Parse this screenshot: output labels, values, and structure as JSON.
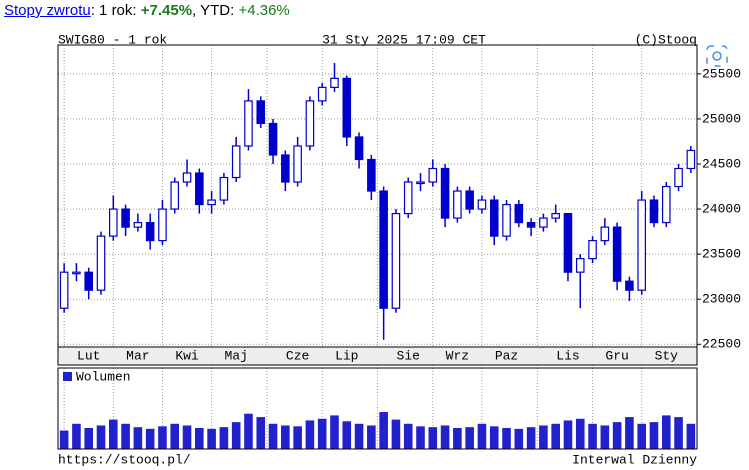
{
  "returns": {
    "link": "Stopy zwrotu",
    "period_label": ": 1 rok: ",
    "period_return": "+7.45%",
    "ytd_label": ", YTD: ",
    "ytd_return": "+4.36%"
  },
  "chart_data": {
    "type": "candlestick",
    "title": "SWIG80 - 1 rok",
    "date": "31 Sty 2025 17:09 CET",
    "credit": "(C)Stooq",
    "source_url": "https://stooq.pl/",
    "interval": "Interwal Dzienny",
    "categories": [
      null,
      null,
      "Lut",
      null,
      null,
      null,
      "Mar",
      null,
      null,
      null,
      "Kwi",
      null,
      null,
      null,
      "Maj",
      null,
      null,
      null,
      null,
      "Cze",
      null,
      null,
      null,
      "Lip",
      null,
      null,
      null,
      null,
      "Sie",
      null,
      null,
      null,
      "Wrz",
      null,
      null,
      null,
      "Paz",
      null,
      null,
      null,
      null,
      "Lis",
      null,
      null,
      null,
      "Gru",
      null,
      null,
      null,
      "Sty",
      null,
      null
    ],
    "open": [
      22900,
      23300,
      23300,
      23100,
      23700,
      24000,
      23800,
      23850,
      23650,
      24000,
      24300,
      24400,
      24050,
      24100,
      24350,
      24700,
      25200,
      24950,
      24600,
      24300,
      24700,
      25200,
      25350,
      25450,
      24800,
      24550,
      24200,
      22900,
      23950,
      24300,
      24300,
      24450,
      23900,
      24200,
      24000,
      24100,
      23700,
      24050,
      23850,
      23800,
      23900,
      23950,
      23300,
      23450,
      23650,
      23800,
      23200,
      23100,
      24100,
      23850,
      24250,
      24450
    ],
    "high": [
      23400,
      23400,
      23350,
      23750,
      24150,
      24050,
      23950,
      23950,
      24100,
      24350,
      24550,
      24450,
      24200,
      24400,
      24800,
      25330,
      25250,
      25000,
      24650,
      24800,
      25250,
      25400,
      25620,
      25480,
      24850,
      24600,
      24250,
      24000,
      24350,
      24400,
      24550,
      24500,
      24250,
      24250,
      24150,
      24150,
      24100,
      24100,
      23900,
      23950,
      24050,
      23950,
      23500,
      23700,
      23900,
      23850,
      23250,
      24200,
      24150,
      24300,
      24500,
      24700
    ],
    "low": [
      22850,
      23200,
      23000,
      23050,
      23650,
      23700,
      23750,
      23550,
      23600,
      23950,
      24250,
      23950,
      23950,
      24050,
      24300,
      24650,
      24900,
      24500,
      24200,
      24250,
      24650,
      25150,
      25300,
      24700,
      24450,
      24100,
      22550,
      22850,
      23900,
      24200,
      24250,
      23800,
      23850,
      23950,
      23950,
      23600,
      23650,
      23800,
      23700,
      23750,
      23850,
      23200,
      22900,
      23400,
      23600,
      23100,
      22980,
      23050,
      23800,
      23800,
      24200,
      24400
    ],
    "close": [
      23300,
      23300,
      23100,
      23700,
      24000,
      23800,
      23850,
      23650,
      24000,
      24300,
      24400,
      24050,
      24100,
      24350,
      24700,
      25200,
      24950,
      24600,
      24300,
      24700,
      25200,
      25350,
      25450,
      24800,
      24550,
      24200,
      22900,
      23950,
      24300,
      24300,
      24450,
      23900,
      24200,
      24000,
      24100,
      23700,
      24050,
      23850,
      23800,
      23900,
      23950,
      23300,
      23450,
      23650,
      23800,
      23200,
      23100,
      24100,
      23850,
      24250,
      24450,
      24650
    ],
    "color": "#0000cc",
    "ylim": [
      22470,
      25820
    ],
    "yticks": [
      22500,
      23000,
      23500,
      24000,
      24500,
      25000,
      25500
    ],
    "grid": true,
    "volume": {
      "name": "Wolumen",
      "color": "#2222cc",
      "ylim": [
        0,
        100
      ],
      "values": [
        22,
        30,
        25,
        28,
        35,
        30,
        26,
        24,
        27,
        30,
        28,
        25,
        24,
        26,
        32,
        42,
        38,
        30,
        28,
        27,
        34,
        36,
        40,
        33,
        30,
        28,
        44,
        35,
        30,
        27,
        26,
        28,
        25,
        26,
        30,
        27,
        25,
        24,
        26,
        28,
        30,
        34,
        36,
        30,
        28,
        32,
        38,
        30,
        32,
        40,
        38,
        30
      ]
    }
  }
}
